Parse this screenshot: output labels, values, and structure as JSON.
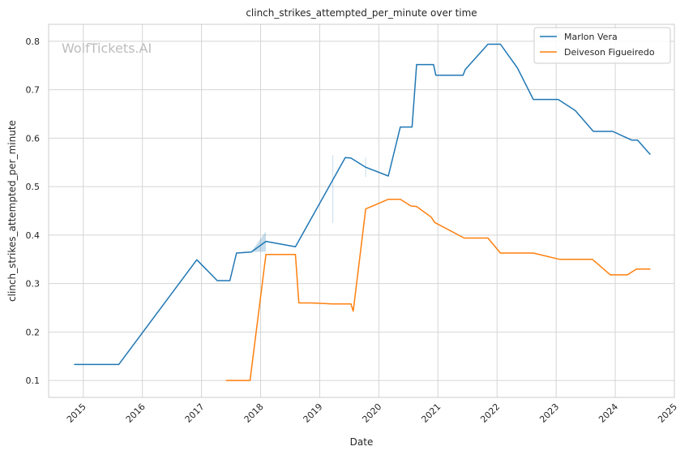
{
  "chart_data": {
    "type": "line",
    "title": "clinch_strikes_attempted_per_minute over time",
    "xlabel": "Date",
    "ylabel": "clinch_strikes_attempted_per_minute",
    "watermark": "WolfTickets.AI",
    "x_axis_type": "date",
    "xlim": [
      "2014-06-01",
      "2025-01-01"
    ],
    "ylim": [
      0.065,
      0.835
    ],
    "x_ticks": [
      "2015",
      "2016",
      "2017",
      "2018",
      "2019",
      "2020",
      "2021",
      "2022",
      "2023",
      "2024",
      "2025"
    ],
    "y_ticks": [
      "0.1",
      "0.2",
      "0.3",
      "0.4",
      "0.5",
      "0.6",
      "0.7",
      "0.8"
    ],
    "grid": true,
    "legend_position": "top-right",
    "series": [
      {
        "name": "Marlon Vera",
        "color": "#1f77b4",
        "points": [
          [
            "2014-11-08",
            0.133
          ],
          [
            "2015-08-08",
            0.133
          ],
          [
            "2016-12-03",
            0.349
          ],
          [
            "2017-04-08",
            0.306
          ],
          [
            "2017-06-25",
            0.306
          ],
          [
            "2017-08-05",
            0.363
          ],
          [
            "2017-11-04",
            0.365
          ],
          [
            "2018-02-03",
            0.387
          ],
          [
            "2018-08-04",
            0.376
          ],
          [
            "2019-06-08",
            0.56
          ],
          [
            "2019-07-13",
            0.559
          ],
          [
            "2019-10-12",
            0.54
          ],
          [
            "2020-02-29",
            0.522
          ],
          [
            "2020-05-13",
            0.623
          ],
          [
            "2020-07-25",
            0.623
          ],
          [
            "2020-08-22",
            0.752
          ],
          [
            "2020-12-05",
            0.752
          ],
          [
            "2020-12-19",
            0.73
          ],
          [
            "2021-06-05",
            0.73
          ],
          [
            "2021-06-19",
            0.742
          ],
          [
            "2021-11-06",
            0.794
          ],
          [
            "2022-01-22",
            0.794
          ],
          [
            "2022-05-07",
            0.745
          ],
          [
            "2022-08-13",
            0.68
          ],
          [
            "2023-01-14",
            0.68
          ],
          [
            "2023-04-29",
            0.657
          ],
          [
            "2023-08-19",
            0.614
          ],
          [
            "2023-12-16",
            0.614
          ],
          [
            "2024-04-13",
            0.596
          ],
          [
            "2024-05-18",
            0.596
          ],
          [
            "2024-08-03",
            0.567
          ]
        ],
        "bands": [
          {
            "points": [
              [
                "2017-11-04",
                0.365,
                0.365
              ],
              [
                "2018-02-03",
                0.366,
                0.408
              ]
            ]
          },
          {
            "points": [
              [
                "2019-03-23",
                0.425,
                0.565
              ]
            ]
          },
          {
            "points": [
              [
                "2019-10-12",
                0.52,
                0.56
              ]
            ]
          }
        ]
      },
      {
        "name": "Deiveson Figueiredo",
        "color": "#ff7f0e",
        "points": [
          [
            "2017-06-03",
            0.1
          ],
          [
            "2017-10-28",
            0.1
          ],
          [
            "2018-02-03",
            0.36
          ],
          [
            "2018-08-04",
            0.36
          ],
          [
            "2018-08-25",
            0.26
          ],
          [
            "2018-11-10",
            0.26
          ],
          [
            "2019-03-23",
            0.258
          ],
          [
            "2019-07-13",
            0.258
          ],
          [
            "2019-07-27",
            0.243
          ],
          [
            "2019-10-12",
            0.454
          ],
          [
            "2020-02-29",
            0.474
          ],
          [
            "2020-05-13",
            0.474
          ],
          [
            "2020-07-19",
            0.46
          ],
          [
            "2020-08-22",
            0.459
          ],
          [
            "2020-11-21",
            0.437
          ],
          [
            "2020-12-12",
            0.426
          ],
          [
            "2021-06-12",
            0.394
          ],
          [
            "2021-11-06",
            0.394
          ],
          [
            "2022-01-22",
            0.363
          ],
          [
            "2022-08-13",
            0.363
          ],
          [
            "2023-01-21",
            0.35
          ],
          [
            "2023-08-12",
            0.35
          ],
          [
            "2023-12-02",
            0.318
          ],
          [
            "2024-03-16",
            0.318
          ],
          [
            "2024-05-11",
            0.33
          ],
          [
            "2024-08-03",
            0.33
          ]
        ],
        "bands": []
      }
    ]
  }
}
